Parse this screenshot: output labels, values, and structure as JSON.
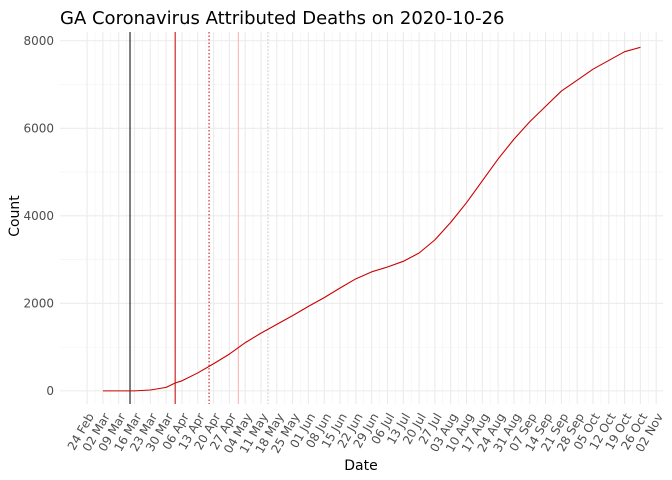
{
  "chart_data": {
    "type": "line",
    "title": "GA Coronavirus Attributed Deaths on 2020-10-26",
    "xlabel": "Date",
    "ylabel": "Count",
    "x_range": [
      "2020-02-24",
      "2020-11-02"
    ],
    "ylim": [
      -300,
      8200
    ],
    "y_ticks": [
      0,
      2000,
      4000,
      6000,
      8000
    ],
    "x_ticks": [
      {
        "date": "2020-02-24",
        "label": "24 Feb"
      },
      {
        "date": "2020-03-02",
        "label": "02 Mar"
      },
      {
        "date": "2020-03-09",
        "label": "09 Mar"
      },
      {
        "date": "2020-03-16",
        "label": "16 Mar"
      },
      {
        "date": "2020-03-23",
        "label": "23 Mar"
      },
      {
        "date": "2020-03-30",
        "label": "30 Mar"
      },
      {
        "date": "2020-04-06",
        "label": "06 Apr"
      },
      {
        "date": "2020-04-13",
        "label": "13 Apr"
      },
      {
        "date": "2020-04-20",
        "label": "20 Apr"
      },
      {
        "date": "2020-04-27",
        "label": "27 Apr"
      },
      {
        "date": "2020-05-04",
        "label": "04 May"
      },
      {
        "date": "2020-05-11",
        "label": "11 May"
      },
      {
        "date": "2020-05-18",
        "label": "18 May"
      },
      {
        "date": "2020-05-25",
        "label": "25 May"
      },
      {
        "date": "2020-06-01",
        "label": "01 Jun"
      },
      {
        "date": "2020-06-08",
        "label": "08 Jun"
      },
      {
        "date": "2020-06-15",
        "label": "15 Jun"
      },
      {
        "date": "2020-06-22",
        "label": "22 Jun"
      },
      {
        "date": "2020-06-29",
        "label": "29 Jun"
      },
      {
        "date": "2020-07-06",
        "label": "06 Jul"
      },
      {
        "date": "2020-07-13",
        "label": "13 Jul"
      },
      {
        "date": "2020-07-20",
        "label": "20 Jul"
      },
      {
        "date": "2020-07-27",
        "label": "27 Jul"
      },
      {
        "date": "2020-08-03",
        "label": "03 Aug"
      },
      {
        "date": "2020-08-10",
        "label": "10 Aug"
      },
      {
        "date": "2020-08-17",
        "label": "17 Aug"
      },
      {
        "date": "2020-08-24",
        "label": "24 Aug"
      },
      {
        "date": "2020-08-31",
        "label": "31 Aug"
      },
      {
        "date": "2020-09-07",
        "label": "07 Sep"
      },
      {
        "date": "2020-09-14",
        "label": "14 Sep"
      },
      {
        "date": "2020-09-21",
        "label": "21 Sep"
      },
      {
        "date": "2020-09-28",
        "label": "28 Sep"
      },
      {
        "date": "2020-10-05",
        "label": "05 Oct"
      },
      {
        "date": "2020-10-12",
        "label": "12 Oct"
      },
      {
        "date": "2020-10-19",
        "label": "19 Oct"
      },
      {
        "date": "2020-10-26",
        "label": "26 Oct"
      },
      {
        "date": "2020-11-02",
        "label": "02 Nov"
      }
    ],
    "vertical_lines": [
      {
        "date": "2020-03-14",
        "color": "#000000",
        "style": "solid"
      },
      {
        "date": "2020-04-03",
        "color": "#cc0000",
        "style": "solid"
      },
      {
        "date": "2020-04-18",
        "color": "#cc0000",
        "style": "dotted"
      },
      {
        "date": "2020-05-01",
        "color": "#ffb3b3",
        "style": "solid"
      },
      {
        "date": "2020-05-14",
        "color": "#cccccc",
        "style": "dotted"
      }
    ],
    "series": [
      {
        "color": "#cc0000",
        "points": [
          [
            "2020-03-02",
            0
          ],
          [
            "2020-03-09",
            0
          ],
          [
            "2020-03-16",
            0
          ],
          [
            "2020-03-23",
            20
          ],
          [
            "2020-03-30",
            80
          ],
          [
            "2020-04-03",
            180
          ],
          [
            "2020-04-06",
            230
          ],
          [
            "2020-04-13",
            410
          ],
          [
            "2020-04-20",
            620
          ],
          [
            "2020-04-27",
            840
          ],
          [
            "2020-05-04",
            1100
          ],
          [
            "2020-05-11",
            1320
          ],
          [
            "2020-05-18",
            1520
          ],
          [
            "2020-05-25",
            1720
          ],
          [
            "2020-06-01",
            1930
          ],
          [
            "2020-06-08",
            2130
          ],
          [
            "2020-06-15",
            2350
          ],
          [
            "2020-06-22",
            2560
          ],
          [
            "2020-06-29",
            2720
          ],
          [
            "2020-07-06",
            2830
          ],
          [
            "2020-07-13",
            2960
          ],
          [
            "2020-07-20",
            3150
          ],
          [
            "2020-07-27",
            3450
          ],
          [
            "2020-08-03",
            3850
          ],
          [
            "2020-08-10",
            4300
          ],
          [
            "2020-08-17",
            4800
          ],
          [
            "2020-08-24",
            5300
          ],
          [
            "2020-08-31",
            5750
          ],
          [
            "2020-09-07",
            6150
          ],
          [
            "2020-09-14",
            6500
          ],
          [
            "2020-09-21",
            6850
          ],
          [
            "2020-09-28",
            7100
          ],
          [
            "2020-10-05",
            7350
          ],
          [
            "2020-10-12",
            7550
          ],
          [
            "2020-10-19",
            7750
          ],
          [
            "2020-10-26",
            7850
          ]
        ]
      }
    ],
    "grid": true
  }
}
